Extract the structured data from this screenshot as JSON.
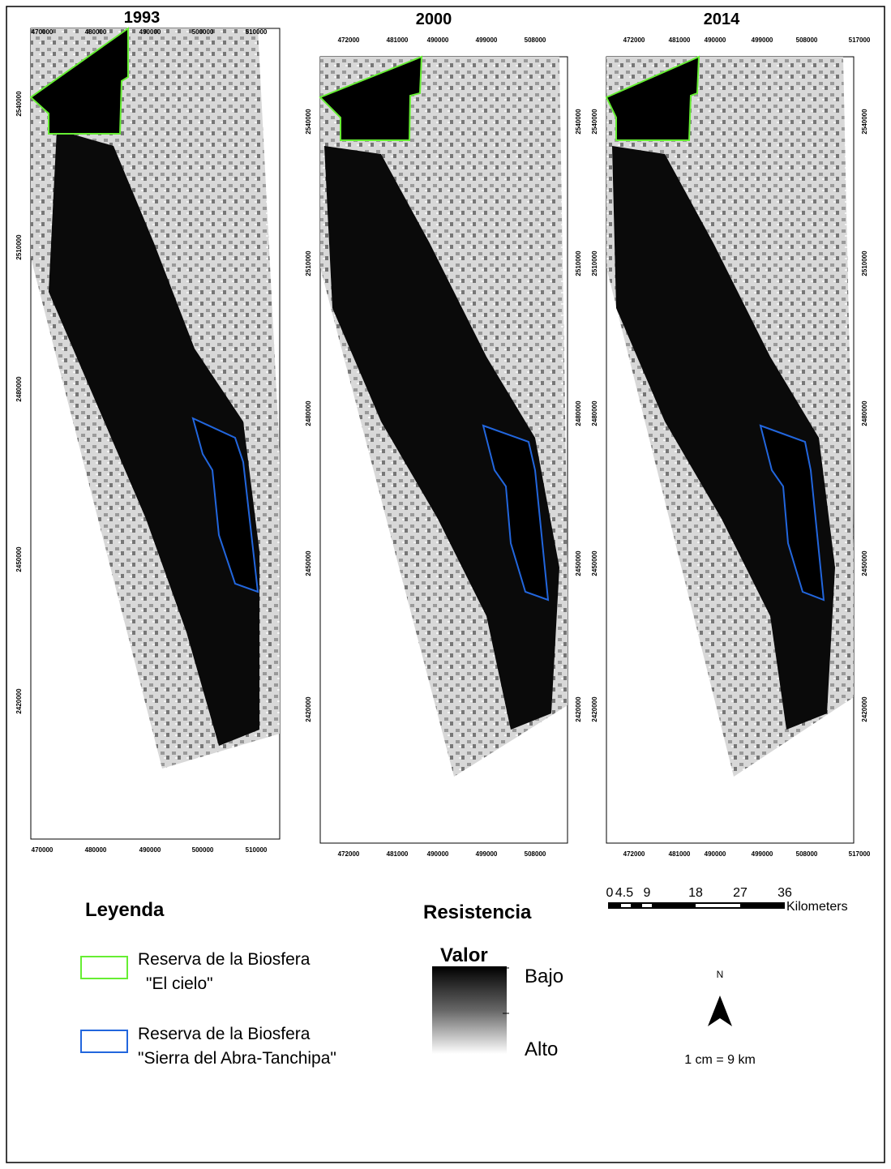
{
  "maps": [
    {
      "title": "1993",
      "x_ticks": [
        "470000",
        "480000",
        "490000",
        "500000",
        "510000"
      ],
      "y_ticks": [
        "2540000",
        "2510000",
        "2480000",
        "2450000",
        "2420000"
      ]
    },
    {
      "title": "2000",
      "x_ticks": [
        "472000",
        "481000",
        "490000",
        "499000",
        "508000"
      ],
      "y_ticks": [
        "2540000",
        "2510000",
        "2480000",
        "2450000",
        "2420000"
      ]
    },
    {
      "title": "2014",
      "x_ticks": [
        "472000",
        "481000",
        "490000",
        "499000",
        "508000",
        "517000"
      ],
      "y_ticks": [
        "2540000",
        "2510000",
        "2480000",
        "2450000",
        "2420000"
      ]
    }
  ],
  "legend": {
    "title": "Leyenda",
    "items": [
      {
        "lines": [
          "Reserva de la Biosfera",
          "\"El cielo\""
        ]
      },
      {
        "lines": [
          "Reserva de la Biosfera",
          "\"Sierra del Abra-Tanchipa\""
        ]
      }
    ]
  },
  "resistance": {
    "title": "Resistencia",
    "subtitle": "Valor",
    "top_label": "Bajo",
    "bottom_label": "Alto"
  },
  "north": "N",
  "scale": {
    "ratio": "1 cm = 9 km",
    "ticks": [
      "0",
      "4.5",
      "9",
      "18",
      "27",
      "36"
    ],
    "unit": "Kilometers"
  }
}
